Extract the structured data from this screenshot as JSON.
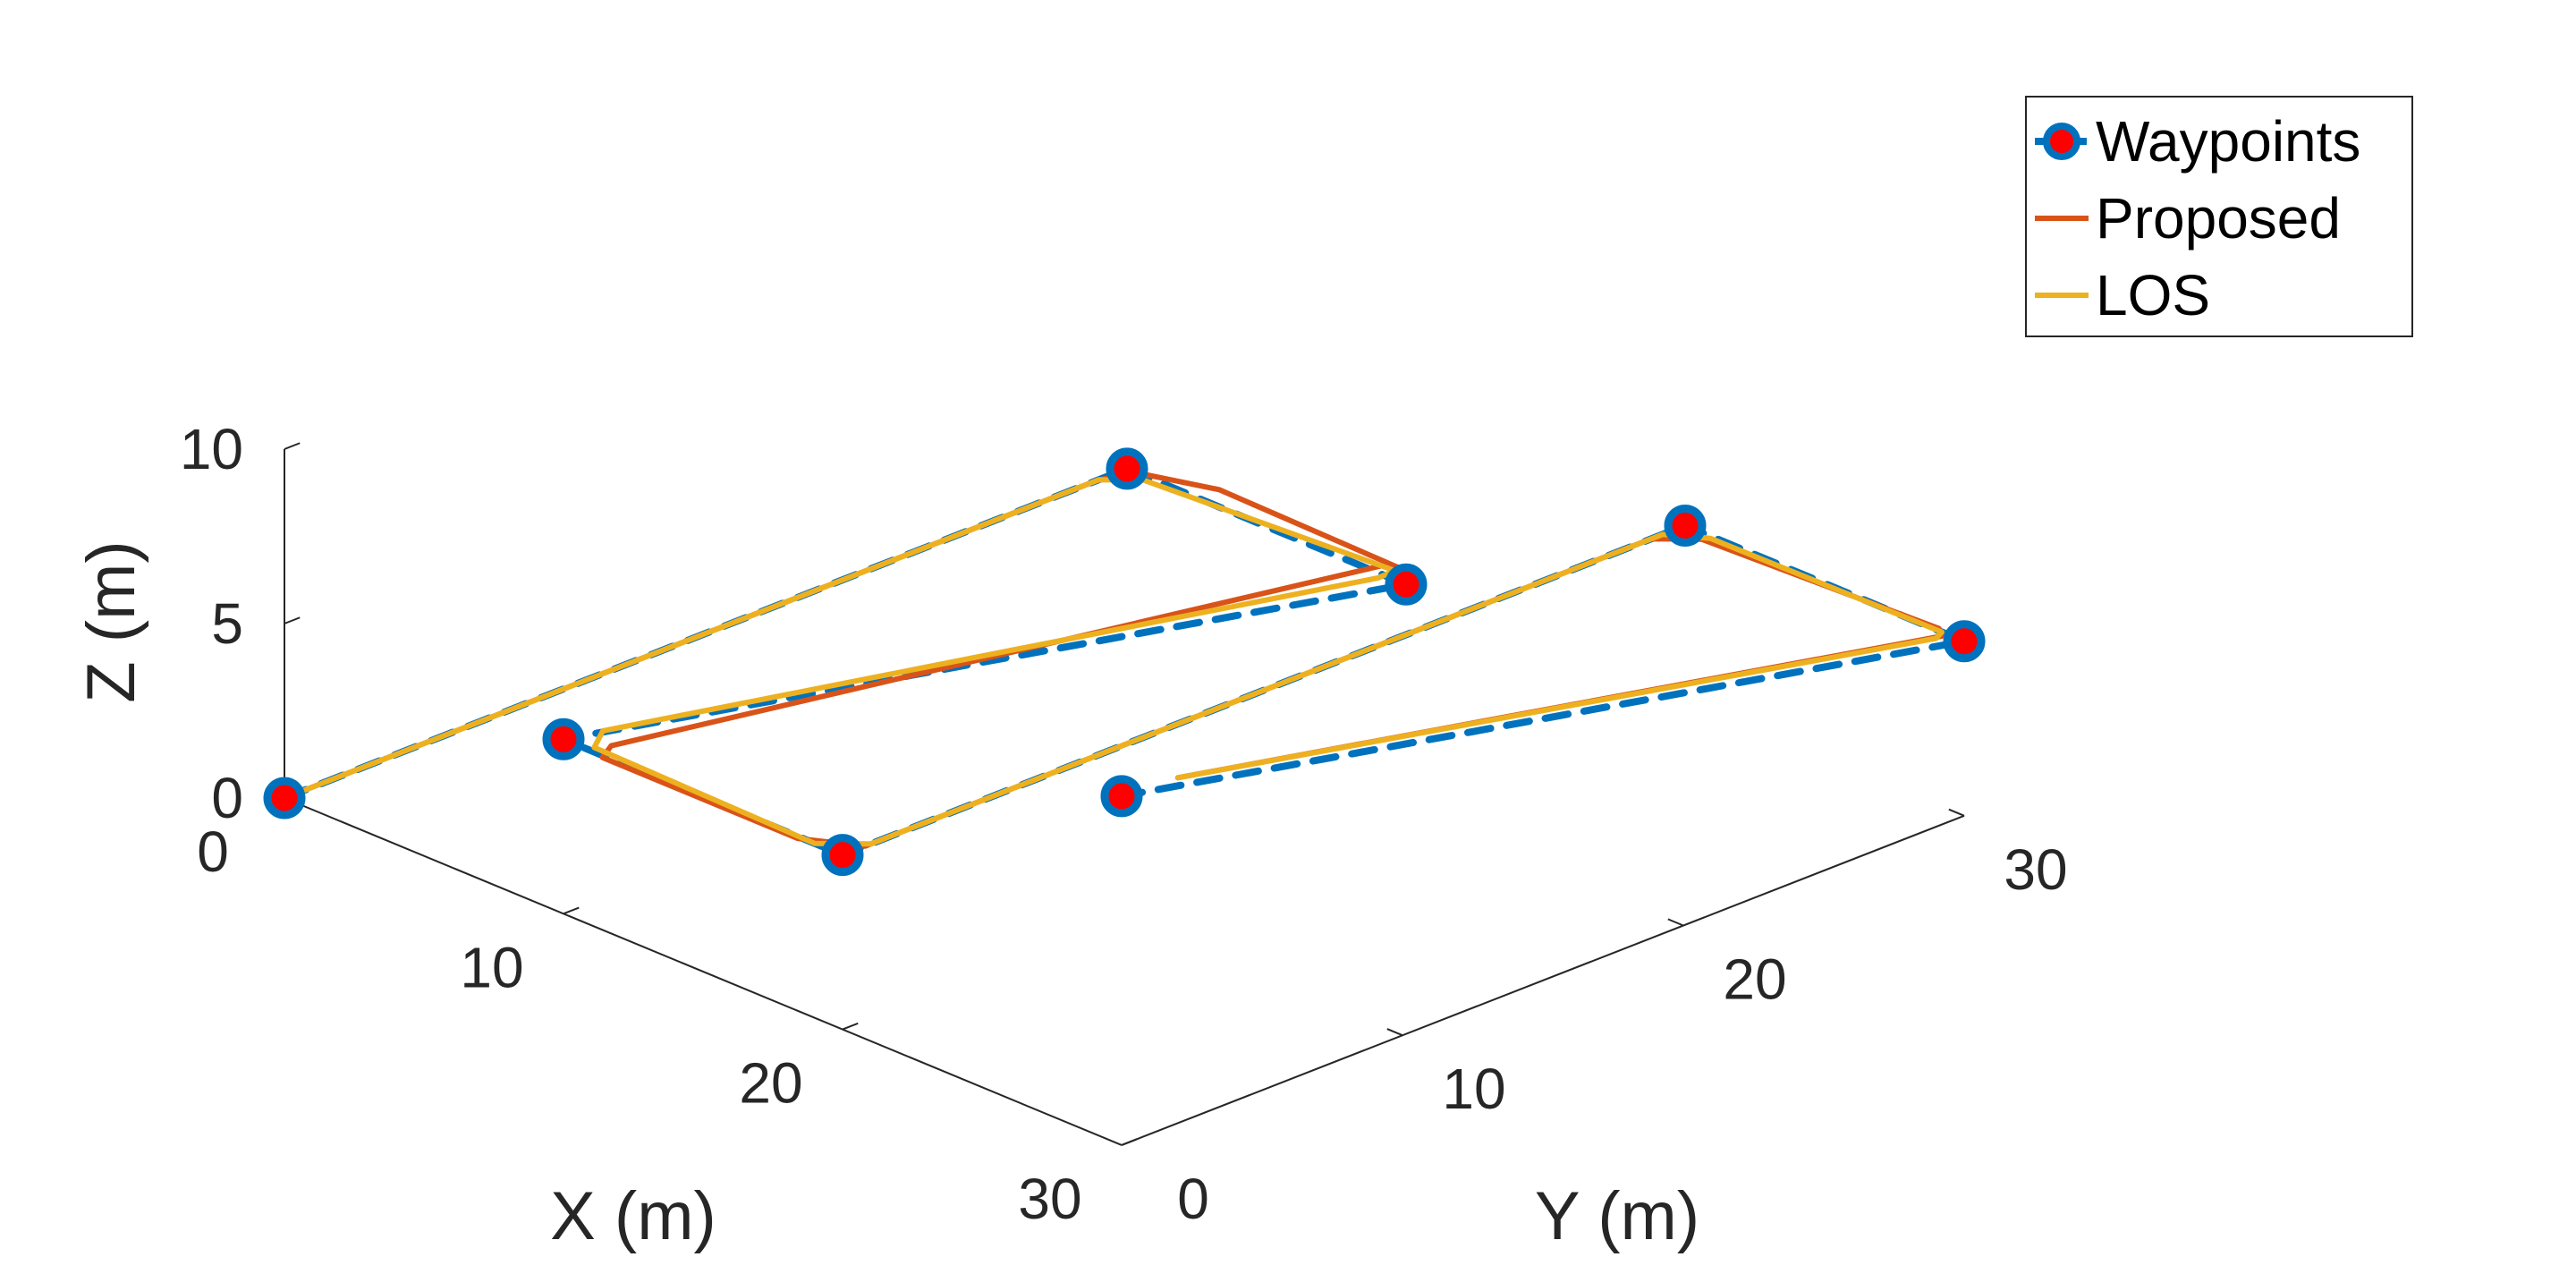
{
  "chart_data": {
    "type": "line",
    "projection": "3d",
    "title": "",
    "xlabel": "X (m)",
    "ylabel": "Y (m)",
    "zlabel": "Z (m)",
    "xlim": [
      0,
      30
    ],
    "ylim": [
      0,
      30
    ],
    "zlim": [
      0,
      10
    ],
    "x_ticks": [
      "0",
      "10",
      "20",
      "30"
    ],
    "y_ticks": [
      "0",
      "10",
      "20",
      "30"
    ],
    "z_ticks": [
      "0",
      "5",
      "10"
    ],
    "grid": false,
    "legend_position": "top-right",
    "colors": {
      "waypoints_line": "#0072BD",
      "waypoints_marker": "#FF0000",
      "proposed": "#D95319",
      "los": "#EDB120",
      "axis": "#262626"
    },
    "series": [
      {
        "name": "Waypoints",
        "style": "dashed-with-markers",
        "points": [
          [
            0,
            0,
            0
          ],
          [
            0,
            30,
            0
          ],
          [
            10,
            30,
            0
          ],
          [
            10,
            0,
            5
          ],
          [
            20,
            0,
            5
          ],
          [
            20,
            30,
            5
          ],
          [
            30,
            30,
            5
          ],
          [
            30,
            0,
            10
          ]
        ]
      },
      {
        "name": "Proposed",
        "style": "solid",
        "points": [
          [
            0,
            0.2,
            0
          ],
          [
            0,
            28.9,
            0
          ],
          [
            0.4,
            29.8,
            0.1
          ],
          [
            3,
            30.3,
            0.3
          ],
          [
            9.4,
            30.6,
            0
          ],
          [
            10,
            29.2,
            0.8
          ],
          [
            10.5,
            1.2,
            4.6
          ],
          [
            11.8,
            -0.4,
            5.2
          ],
          [
            18.8,
            -0.4,
            5.2
          ],
          [
            20,
            0.8,
            5
          ],
          [
            20,
            28.8,
            5
          ],
          [
            20.9,
            29.7,
            5
          ],
          [
            29,
            30.1,
            5
          ],
          [
            30,
            29.2,
            5.4
          ],
          [
            30,
            2,
            9.9
          ]
        ]
      },
      {
        "name": "LOS",
        "style": "solid",
        "points": [
          [
            0,
            0.1,
            0
          ],
          [
            0,
            29,
            0
          ],
          [
            0.8,
            29.8,
            0
          ],
          [
            9.2,
            30.4,
            0
          ],
          [
            10,
            29,
            0.5
          ],
          [
            10,
            1.4,
            4.8
          ],
          [
            10.9,
            0.2,
            5
          ],
          [
            19,
            0,
            5
          ],
          [
            20,
            1,
            5
          ],
          [
            20,
            29.2,
            5
          ],
          [
            21,
            29.9,
            5
          ],
          [
            29.2,
            30,
            5
          ],
          [
            30,
            29,
            5.4
          ],
          [
            30,
            2,
            9.9
          ]
        ]
      }
    ]
  }
}
